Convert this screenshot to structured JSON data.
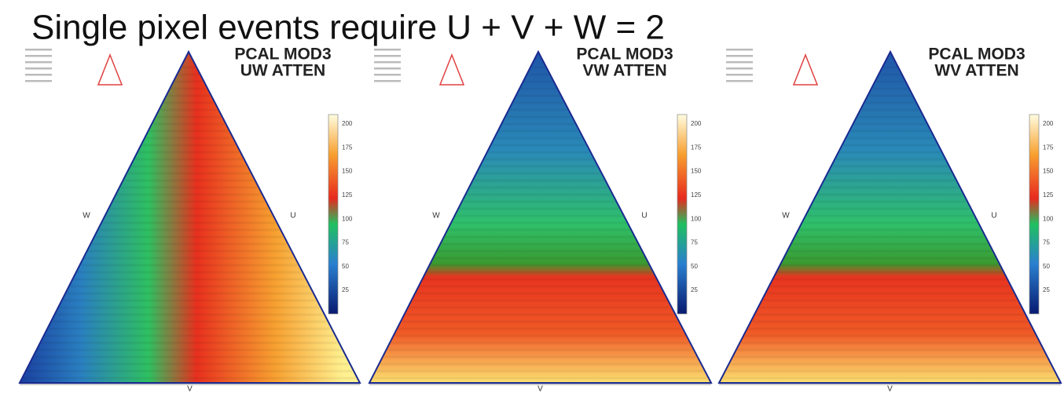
{
  "title": "Single pixel events require U + V + W = 2",
  "panels": [
    {
      "title_lines": [
        "PCAL MOD3",
        "UW ATTEN"
      ],
      "left_label": "W",
      "right_label": "U",
      "bottom_label": "V",
      "colorbar_ticks": [
        "200",
        "175",
        "150",
        "125",
        "100",
        "75",
        "50",
        "25"
      ]
    },
    {
      "title_lines": [
        "PCAL MOD3",
        "VW ATTEN"
      ],
      "left_label": "W",
      "right_label": "U",
      "bottom_label": "V",
      "colorbar_ticks": [
        "200",
        "175",
        "150",
        "125",
        "100",
        "75",
        "50",
        "25"
      ]
    },
    {
      "title_lines": [
        "PCAL MOD3",
        "WV ATTEN"
      ],
      "left_label": "W",
      "right_label": "U",
      "bottom_label": "V",
      "colorbar_ticks": [
        "200",
        "175",
        "150",
        "125",
        "100",
        "75",
        "50",
        "25"
      ]
    }
  ]
}
